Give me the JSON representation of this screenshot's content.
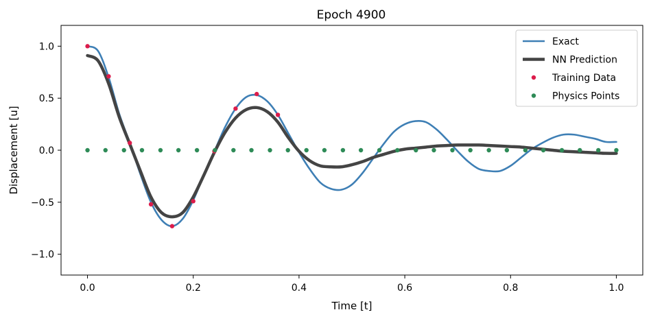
{
  "chart_data": {
    "type": "line",
    "title": "Epoch 4900",
    "xlabel": "Time [t]",
    "ylabel": "Displacement [u]",
    "xlim": [
      -0.05,
      1.05
    ],
    "ylim": [
      -1.2,
      1.2
    ],
    "x_ticks": [
      0.0,
      0.2,
      0.4,
      0.6,
      0.8,
      1.0
    ],
    "x_tick_labels": [
      "0.0",
      "0.2",
      "0.4",
      "0.6",
      "0.8",
      "1.0"
    ],
    "y_ticks": [
      -1.0,
      -0.5,
      0.0,
      0.5,
      1.0
    ],
    "y_tick_labels": [
      "−1.0",
      "−0.5",
      "0.0",
      "0.5",
      "1.0"
    ],
    "grid": false,
    "legend_position": "top-right",
    "series": [
      {
        "name": "Exact",
        "kind": "line",
        "color": "#3e7fb5",
        "x": [
          0.0,
          0.02,
          0.04,
          0.06,
          0.08,
          0.1,
          0.12,
          0.14,
          0.16,
          0.18,
          0.2,
          0.22,
          0.24,
          0.26,
          0.28,
          0.3,
          0.32,
          0.34,
          0.36,
          0.38,
          0.4,
          0.42,
          0.44,
          0.46,
          0.48,
          0.5,
          0.52,
          0.54,
          0.56,
          0.58,
          0.6,
          0.62,
          0.64,
          0.66,
          0.68,
          0.7,
          0.72,
          0.74,
          0.76,
          0.78,
          0.8,
          0.82,
          0.84,
          0.86,
          0.88,
          0.9,
          0.92,
          0.94,
          0.96,
          0.98,
          1.0
        ],
        "y": [
          1.0,
          0.954,
          0.7,
          0.35,
          0.07,
          -0.23,
          -0.5,
          -0.67,
          -0.73,
          -0.66,
          -0.48,
          -0.24,
          -0.01,
          0.22,
          0.4,
          0.51,
          0.53,
          0.47,
          0.34,
          0.16,
          -0.02,
          -0.18,
          -0.31,
          -0.37,
          -0.38,
          -0.33,
          -0.22,
          -0.08,
          0.06,
          0.18,
          0.25,
          0.28,
          0.27,
          0.2,
          0.1,
          -0.01,
          -0.11,
          -0.18,
          -0.2,
          -0.2,
          -0.15,
          -0.07,
          0.01,
          0.07,
          0.12,
          0.15,
          0.15,
          0.13,
          0.11,
          0.08,
          0.08
        ]
      },
      {
        "name": "NN Prediction",
        "kind": "line",
        "color": "#444444",
        "x": [
          0.0,
          0.02,
          0.04,
          0.06,
          0.08,
          0.1,
          0.12,
          0.14,
          0.16,
          0.18,
          0.2,
          0.22,
          0.24,
          0.26,
          0.28,
          0.3,
          0.32,
          0.34,
          0.36,
          0.38,
          0.4,
          0.42,
          0.44,
          0.46,
          0.48,
          0.5,
          0.52,
          0.54,
          0.56,
          0.58,
          0.6,
          0.62,
          0.64,
          0.66,
          0.68,
          0.7,
          0.72,
          0.74,
          0.76,
          0.78,
          0.8,
          0.82,
          0.84,
          0.86,
          0.88,
          0.9,
          0.92,
          0.94,
          0.96,
          0.98,
          1.0
        ],
        "y": [
          0.91,
          0.86,
          0.64,
          0.32,
          0.06,
          -0.2,
          -0.45,
          -0.6,
          -0.64,
          -0.6,
          -0.45,
          -0.24,
          -0.02,
          0.17,
          0.31,
          0.39,
          0.41,
          0.37,
          0.27,
          0.12,
          -0.01,
          -0.1,
          -0.15,
          -0.16,
          -0.16,
          -0.14,
          -0.11,
          -0.07,
          -0.04,
          -0.01,
          0.01,
          0.02,
          0.03,
          0.04,
          0.045,
          0.05,
          0.05,
          0.05,
          0.045,
          0.04,
          0.035,
          0.03,
          0.02,
          0.01,
          0.0,
          -0.01,
          -0.015,
          -0.02,
          -0.025,
          -0.03,
          -0.03
        ]
      },
      {
        "name": "Training Data",
        "kind": "scatter",
        "color": "#dc1c4b",
        "x": [
          0.0,
          0.04,
          0.08,
          0.12,
          0.16,
          0.2,
          0.24,
          0.28,
          0.32,
          0.36
        ],
        "y": [
          1.0,
          0.71,
          0.07,
          -0.52,
          -0.73,
          -0.49,
          -0.01,
          0.4,
          0.54,
          0.34
        ]
      },
      {
        "name": "Physics Points",
        "kind": "scatter",
        "color": "#2e8b57",
        "x": [
          0.0,
          0.034,
          0.069,
          0.103,
          0.138,
          0.172,
          0.207,
          0.241,
          0.276,
          0.31,
          0.345,
          0.379,
          0.414,
          0.448,
          0.483,
          0.517,
          0.552,
          0.586,
          0.621,
          0.655,
          0.69,
          0.724,
          0.759,
          0.793,
          0.828,
          0.862,
          0.897,
          0.931,
          0.966,
          1.0
        ],
        "y": [
          0.0,
          0.0,
          0.0,
          0.0,
          0.0,
          0.0,
          0.0,
          0.0,
          0.0,
          0.0,
          0.0,
          0.0,
          0.0,
          0.0,
          0.0,
          0.0,
          0.0,
          0.0,
          0.0,
          0.0,
          0.0,
          0.0,
          0.0,
          0.0,
          0.0,
          0.0,
          0.0,
          0.0,
          0.0,
          0.0
        ]
      }
    ]
  }
}
